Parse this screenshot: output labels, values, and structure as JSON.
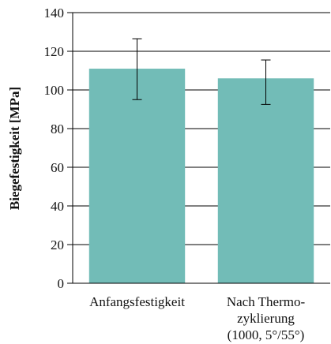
{
  "chart_data": {
    "type": "bar",
    "title": "",
    "xlabel": "",
    "ylabel": "Biegefestigkeit [MPa]",
    "ylim": [
      0,
      140
    ],
    "yticks": [
      0,
      20,
      40,
      60,
      80,
      100,
      120,
      140
    ],
    "grid": true,
    "legend": "none",
    "categories": [
      [
        "Anfangsfestigkeit"
      ],
      [
        "Nach Thermo-",
        "zyklierung",
        "(1000, 5°/55°)"
      ]
    ],
    "values": [
      111,
      106
    ],
    "error_low": [
      95,
      92.5
    ],
    "error_high": [
      126.5,
      115.5
    ],
    "bar_color": "#72bcb7",
    "axis_color": "#000000"
  }
}
